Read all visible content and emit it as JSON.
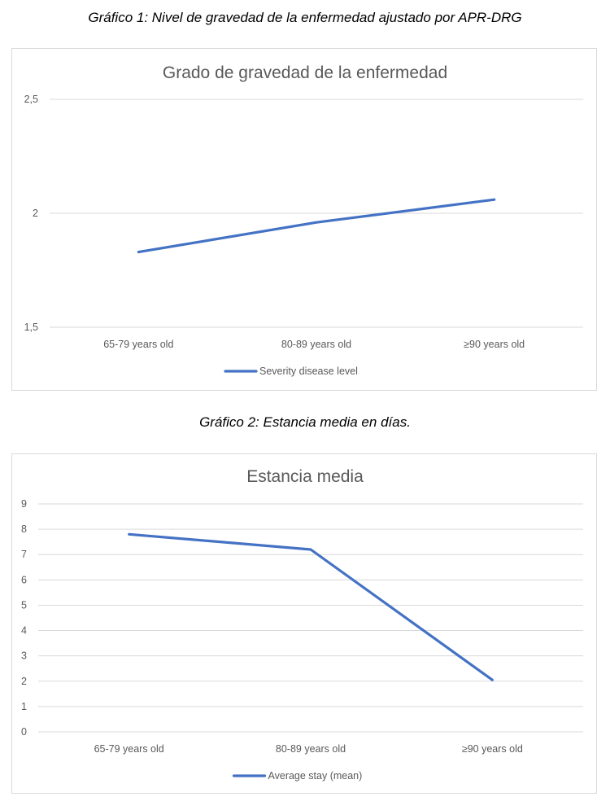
{
  "captions": {
    "chart1": "Gráfico 1: Nivel de gravedad de la enfermedad ajustado por APR-DRG",
    "chart2": "Gráfico 2: Estancia media en días."
  },
  "chart_data": [
    {
      "type": "line",
      "title": "Grado de gravedad de la enfermedad",
      "categories": [
        "65-79 years old",
        "80-89 years old",
        "≥90 years old"
      ],
      "series": [
        {
          "name": "Severity disease level",
          "values": [
            1.83,
            1.96,
            2.06
          ],
          "color": "#4472c4"
        }
      ],
      "ylim": [
        1.5,
        2.5
      ],
      "yticks": [
        1.5,
        2,
        2.5
      ],
      "ytick_labels": [
        "1,5",
        "2",
        "2,5"
      ],
      "grid": true,
      "legend": "bottom"
    },
    {
      "type": "line",
      "title": "Estancia media",
      "categories": [
        "65-79 years old",
        "80-89 years old",
        "≥90 years old"
      ],
      "series": [
        {
          "name": "Average stay (mean)",
          "values": [
            7.8,
            7.2,
            2.05
          ],
          "color": "#4472c4"
        }
      ],
      "ylim": [
        0,
        9
      ],
      "yticks": [
        0,
        1,
        2,
        3,
        4,
        5,
        6,
        7,
        8,
        9
      ],
      "ytick_labels": [
        "0",
        "1",
        "2",
        "3",
        "4",
        "5",
        "6",
        "7",
        "8",
        "9"
      ],
      "grid": true,
      "legend": "bottom"
    }
  ]
}
